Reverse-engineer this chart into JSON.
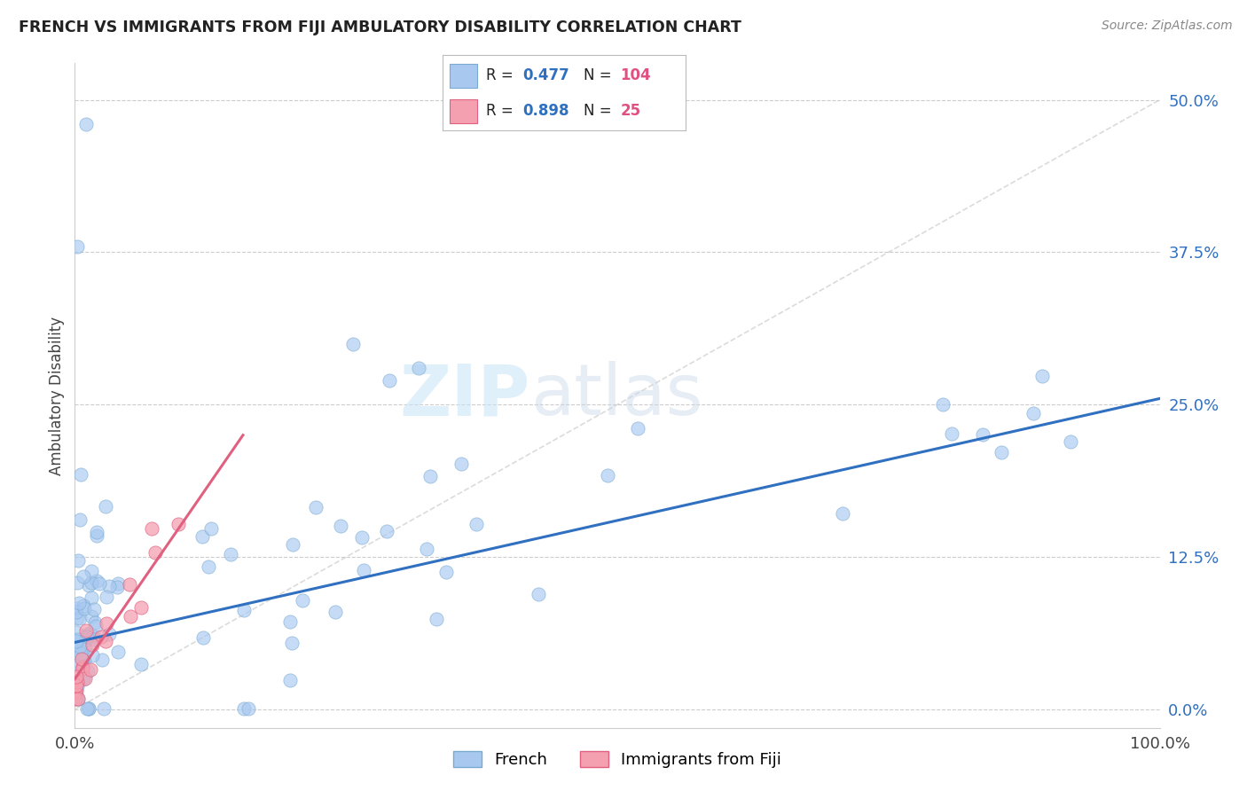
{
  "title": "FRENCH VS IMMIGRANTS FROM FIJI AMBULATORY DISABILITY CORRELATION CHART",
  "source_text": "Source: ZipAtlas.com",
  "ylabel": "Ambulatory Disability",
  "watermark_zip": "ZIP",
  "watermark_atlas": "atlas",
  "french_R": 0.477,
  "french_N": 104,
  "fiji_R": 0.898,
  "fiji_N": 25,
  "french_color": "#a8c8f0",
  "french_edge_color": "#7aaad0",
  "fiji_color": "#f4a0b0",
  "fiji_edge_color": "#e06080",
  "french_line_color": "#3070c0",
  "fiji_line_color": "#e06080",
  "ref_line_color": "#cccccc",
  "title_color": "#222222",
  "source_color": "#888888",
  "axis_color": "#444444",
  "tick_color": "#3070c0",
  "legend_r_color": "#3070c0",
  "legend_n_color": "#e05080",
  "xmin": 0.0,
  "xmax": 1.0,
  "ymin": -0.015,
  "ymax": 0.53,
  "yticks": [
    0.0,
    0.125,
    0.25,
    0.375,
    0.5
  ],
  "ytick_labels": [
    "0.0%",
    "12.5%",
    "25.0%",
    "37.5%",
    "50.0%"
  ],
  "grid_color": "#cccccc",
  "background_color": "#ffffff",
  "french_line_x": [
    0.0,
    1.0
  ],
  "french_line_y": [
    0.055,
    0.255
  ],
  "fiji_line_x": [
    0.0,
    0.155
  ],
  "fiji_line_y": [
    0.025,
    0.225
  ],
  "ref_line_x": [
    0.0,
    1.0
  ],
  "ref_line_y": [
    0.0,
    0.5
  ]
}
